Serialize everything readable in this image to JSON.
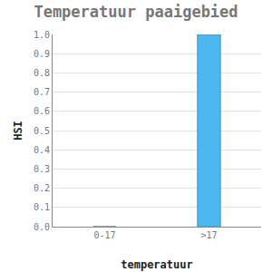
{
  "chart_data": {
    "type": "bar",
    "title": "Temperatuur paaigebied",
    "x_label": "temperatuur",
    "y_label": "HSI",
    "categories": [
      "0-17",
      ">17"
    ],
    "values": [
      0,
      1
    ],
    "color": "#4db8f0",
    "ylim": [
      0,
      1
    ],
    "yticks": [
      {
        "value": 0,
        "label": "0.0"
      },
      0.1,
      0.2,
      0.3,
      0.4,
      0.5,
      0.6,
      0.7,
      0.8,
      0.9,
      {
        "value": 1,
        "label": "1.0"
      }
    ],
    "grid": true
  }
}
